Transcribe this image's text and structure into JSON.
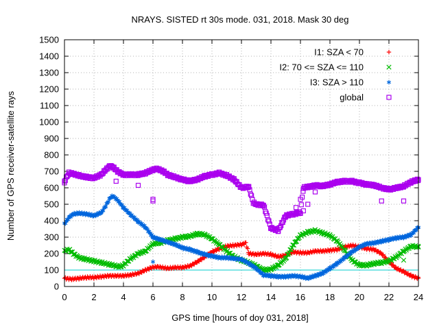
{
  "chart_data": {
    "type": "scatter",
    "title": "NRAYS. SISTED rt 30s mode. 031, 2018. Mask 30 deg",
    "xlabel": "GPS time [hours of doy 031, 2018]",
    "ylabel": "Number of GPS receiver-satellite rays",
    "xlim": [
      0,
      24
    ],
    "ylim": [
      0,
      1500
    ],
    "xticks": [
      0,
      2,
      4,
      6,
      8,
      10,
      12,
      14,
      16,
      18,
      20,
      22,
      24
    ],
    "yticks": [
      0,
      100,
      200,
      300,
      400,
      500,
      600,
      700,
      800,
      900,
      1000,
      1100,
      1200,
      1300,
      1400,
      1500
    ],
    "grid": true,
    "legend_position": "top-right",
    "reference_line": {
      "y": 100,
      "color": "#00cccc"
    },
    "series": [
      {
        "name": "I1: SZA < 70",
        "color": "#ff0000",
        "marker": "+",
        "x": [
          0,
          0.5,
          1,
          1.5,
          2,
          2.5,
          3,
          3.5,
          4,
          4.5,
          5,
          5.5,
          5.9,
          6.3,
          7,
          7.5,
          8,
          8.5,
          9,
          9.5,
          10,
          10.5,
          11,
          11.5,
          12,
          12.3,
          12.5,
          13,
          13.5,
          14,
          14.5,
          15,
          15.5,
          16,
          16.5,
          17,
          17.5,
          18,
          18.5,
          19,
          19.5,
          20,
          20.5,
          21,
          21.5,
          22,
          22.5,
          23,
          23.5,
          24
        ],
        "y": [
          50,
          45,
          50,
          55,
          55,
          60,
          65,
          65,
          65,
          70,
          80,
          100,
          115,
          120,
          110,
          115,
          115,
          125,
          150,
          180,
          210,
          230,
          245,
          250,
          255,
          265,
          200,
          195,
          200,
          195,
          180,
          190,
          210,
          205,
          205,
          215,
          215,
          220,
          225,
          240,
          250,
          240,
          230,
          225,
          200,
          150,
          110,
          90,
          65,
          50
        ]
      },
      {
        "name": "I2: 70 <= SZA <= 110",
        "color": "#00bb00",
        "marker": "x",
        "x": [
          0,
          0.3,
          0.6,
          1,
          1.5,
          2,
          2.5,
          3,
          3.5,
          3.8,
          4,
          4.5,
          5,
          5.5,
          6,
          6.5,
          7,
          7.5,
          8,
          8.5,
          9,
          9.5,
          10,
          10.5,
          11,
          11.5,
          12,
          12.5,
          13,
          13.5,
          14,
          14.5,
          15,
          15.5,
          16,
          16.5,
          17,
          17.5,
          18,
          18.5,
          19,
          19.5,
          20,
          20.5,
          21,
          21.5,
          22,
          22.5,
          23,
          23.5,
          24
        ],
        "y": [
          215,
          225,
          200,
          175,
          165,
          155,
          145,
          135,
          125,
          120,
          130,
          170,
          200,
          215,
          260,
          265,
          280,
          290,
          300,
          305,
          320,
          315,
          290,
          255,
          215,
          180,
          160,
          145,
          125,
          100,
          105,
          130,
          170,
          250,
          310,
          330,
          340,
          325,
          310,
          275,
          220,
          160,
          130,
          130,
          140,
          145,
          155,
          180,
          215,
          245,
          240
        ]
      },
      {
        "name": "I3: SZA > 110",
        "color": "#0066dd",
        "marker": "*",
        "x": [
          0,
          0.3,
          0.6,
          1,
          1.5,
          2,
          2.5,
          2.8,
          3.1,
          3.3,
          3.6,
          4,
          4.5,
          5,
          5.5,
          6,
          6.5,
          7,
          7.5,
          8,
          8.5,
          9,
          9.5,
          10,
          10.5,
          11,
          11.5,
          12,
          12.5,
          13,
          13.5,
          14,
          14.5,
          15,
          15.5,
          16,
          16.5,
          17,
          17.5,
          18,
          18.5,
          19,
          19.5,
          20,
          20.5,
          21,
          21.5,
          22,
          22.5,
          23,
          23.5,
          24
        ],
        "y": [
          380,
          420,
          440,
          445,
          440,
          430,
          450,
          490,
          540,
          550,
          525,
          480,
          435,
          395,
          360,
          300,
          285,
          270,
          255,
          235,
          225,
          210,
          195,
          185,
          175,
          175,
          170,
          165,
          140,
          110,
          70,
          65,
          60,
          60,
          65,
          60,
          50,
          65,
          80,
          110,
          140,
          175,
          210,
          240,
          260,
          265,
          275,
          285,
          295,
          300,
          315,
          360
        ]
      },
      {
        "name": "global",
        "color": "#aa00ee",
        "marker": "square",
        "x": [
          0,
          0.3,
          0.6,
          1,
          1.5,
          2,
          2.5,
          2.8,
          3.1,
          3.3,
          3.6,
          4,
          4.5,
          5,
          5.5,
          6,
          6.3,
          6.7,
          7,
          7.5,
          8,
          8.5,
          9,
          9.5,
          10,
          10.5,
          11,
          11.5,
          12,
          12.5,
          12.8,
          13,
          13.5,
          14,
          14.5,
          15,
          15.5,
          16,
          16.2,
          16.5,
          17,
          17.5,
          18,
          18.5,
          19,
          19.5,
          20,
          20.5,
          21,
          21.5,
          22,
          22.5,
          23,
          23.5,
          24
        ],
        "y": [
          640,
          690,
          685,
          675,
          665,
          660,
          680,
          710,
          735,
          725,
          700,
          680,
          680,
          680,
          690,
          710,
          715,
          700,
          680,
          665,
          650,
          640,
          650,
          670,
          680,
          690,
          675,
          650,
          600,
          605,
          510,
          500,
          495,
          355,
          340,
          430,
          440,
          450,
          600,
          605,
          615,
          610,
          620,
          635,
          640,
          640,
          630,
          620,
          615,
          600,
          590,
          600,
          610,
          635,
          650
        ]
      }
    ],
    "outliers": [
      {
        "series": "global",
        "x": 0,
        "y": 630
      },
      {
        "series": "global",
        "x": 3.5,
        "y": 640
      },
      {
        "series": "global",
        "x": 5.0,
        "y": 615
      },
      {
        "series": "global",
        "x": 6.0,
        "y": 530
      },
      {
        "series": "global",
        "x": 6.0,
        "y": 520
      },
      {
        "series": "global",
        "x": 15.7,
        "y": 480
      },
      {
        "series": "global",
        "x": 16.0,
        "y": 530
      },
      {
        "series": "global",
        "x": 16.2,
        "y": 460
      },
      {
        "series": "global",
        "x": 16.5,
        "y": 500
      },
      {
        "series": "global",
        "x": 17.0,
        "y": 575
      },
      {
        "series": "global",
        "x": 21.5,
        "y": 520
      },
      {
        "series": "global",
        "x": 23.0,
        "y": 520
      },
      {
        "series": "I2: 70 <= SZA <= 110",
        "x": 23.0,
        "y": 160
      },
      {
        "series": "I3: SZA > 110",
        "x": 6.0,
        "y": 150
      }
    ]
  }
}
